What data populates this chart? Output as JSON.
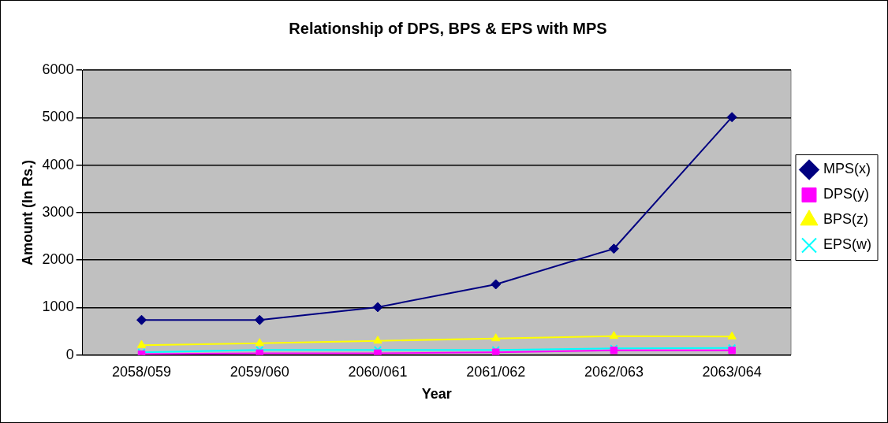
{
  "chart_data": {
    "type": "line",
    "title": "Relationship of DPS, BPS & EPS with MPS",
    "xlabel": "Year",
    "ylabel": "Amount (In Rs.)",
    "categories": [
      "2058/059",
      "2059/060",
      "2060/061",
      "2061/062",
      "2062/063",
      "2063/064"
    ],
    "series": [
      {
        "name": "MPS(x)",
        "color": "#000080",
        "marker": "diamond",
        "values": [
          740,
          740,
          1010,
          1490,
          2240,
          5010
        ]
      },
      {
        "name": "DPS(y)",
        "color": "#ff00ff",
        "marker": "square",
        "values": [
          20,
          40,
          40,
          60,
          100,
          100
        ]
      },
      {
        "name": "BPS(z)",
        "color": "#ffff00",
        "marker": "triangle",
        "values": [
          210,
          250,
          300,
          350,
          400,
          390
        ]
      },
      {
        "name": "EPS(w)",
        "color": "#00ffff",
        "marker": "cross",
        "values": [
          60,
          110,
          110,
          110,
          140,
          150
        ]
      }
    ],
    "ylim": [
      0,
      6000
    ],
    "yticks": [
      0,
      1000,
      2000,
      3000,
      4000,
      5000,
      6000
    ],
    "grid": "y",
    "legend": "right"
  }
}
